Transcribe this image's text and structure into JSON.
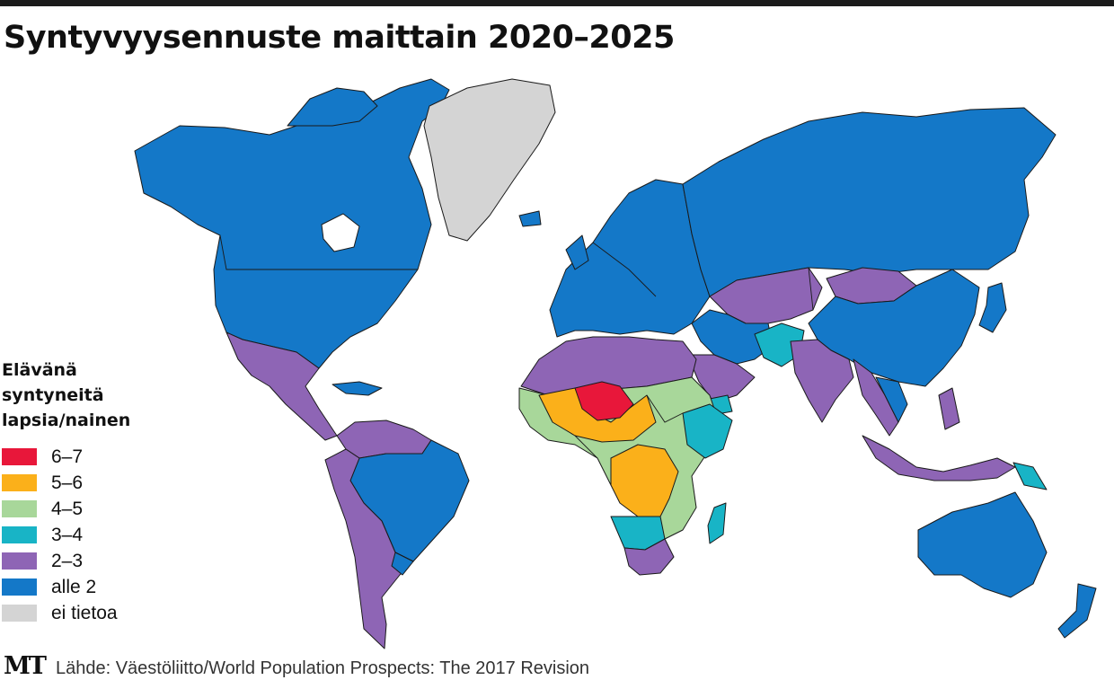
{
  "title": "Syntyvyysennuste maittain 2020–2025",
  "legend": {
    "title_lines": [
      "Elävänä",
      "syntyneitä",
      "lapsia/nainen"
    ],
    "items": [
      {
        "label": "6–7",
        "color": "#e8173a"
      },
      {
        "label": "5–6",
        "color": "#fbb01a"
      },
      {
        "label": "4–5",
        "color": "#a8d79a"
      },
      {
        "label": "3–4",
        "color": "#18b4c6"
      },
      {
        "label": "2–3",
        "color": "#8e65b5"
      },
      {
        "label": "alle 2",
        "color": "#1478c8"
      },
      {
        "label": "ei tietoa",
        "color": "#d4d4d4"
      }
    ]
  },
  "footer": {
    "logo": "MT",
    "source": "Lähde: Väestöliitto/World Population Prospects: The 2017 Revision"
  }
}
